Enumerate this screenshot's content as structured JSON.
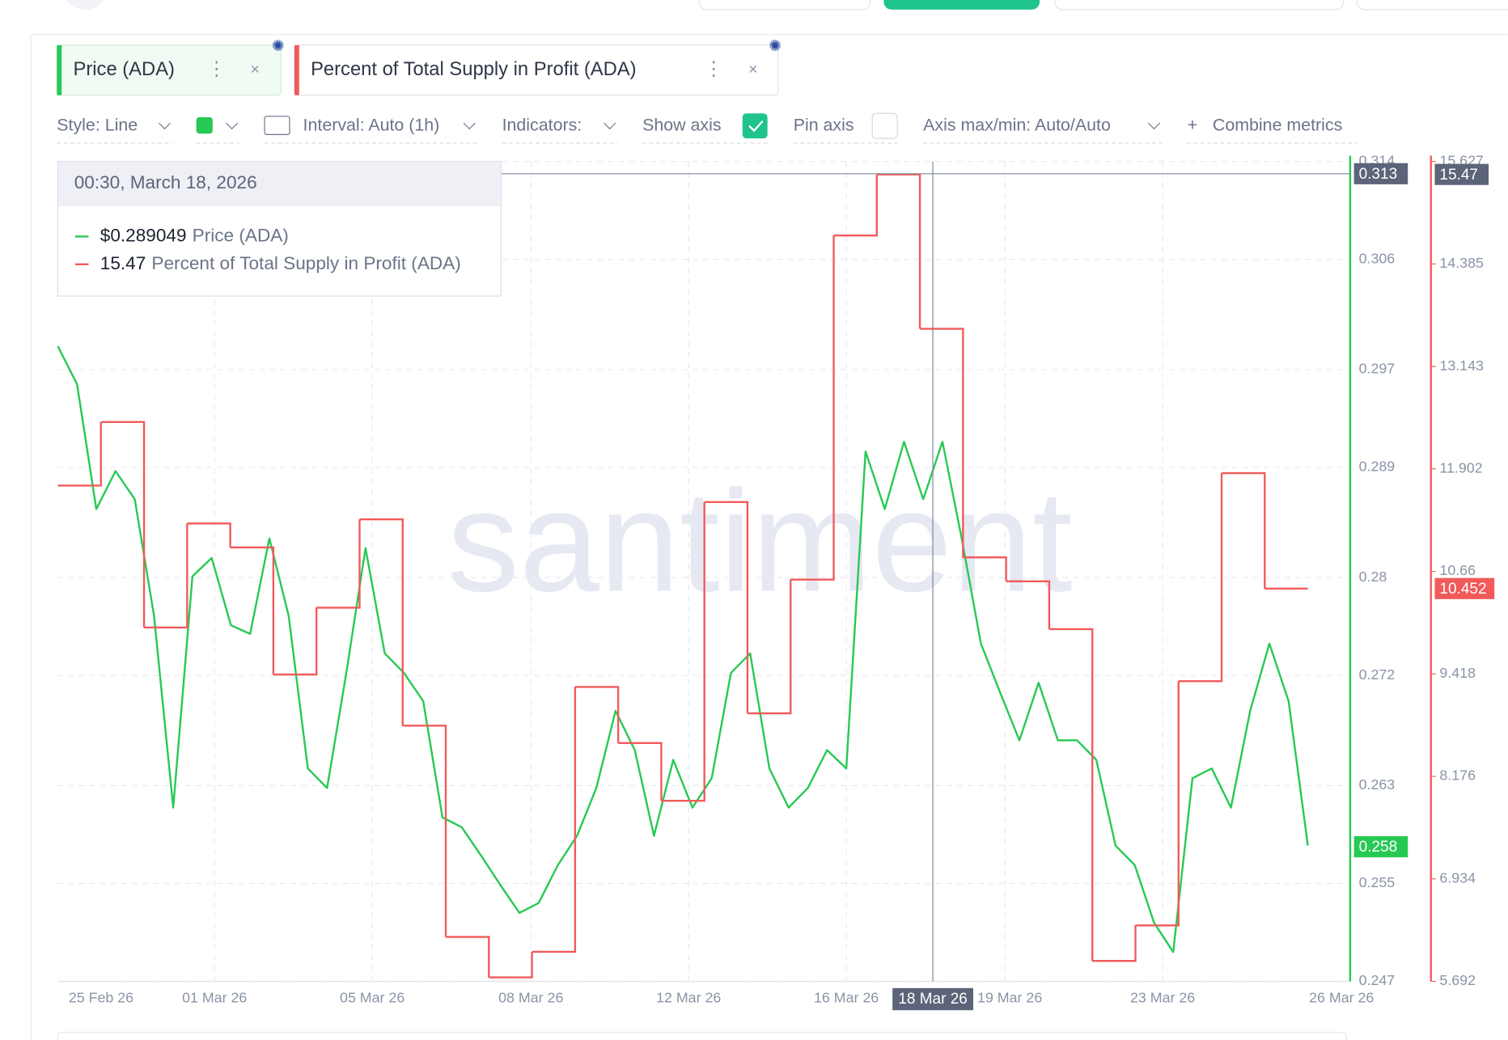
{
  "ui": {
    "tabs": [
      "Price (ADA)",
      "Percent of Total Supply in Profit (ADA)"
    ],
    "toolbar": {
      "style": "Style: Line",
      "interval": "Interval: Auto (1h)",
      "indicators": "Indicators:",
      "show_axis": "Show axis",
      "pin_axis": "Pin axis",
      "axis_minmax": "Axis max/min: Auto/Auto",
      "combine": "Combine metrics"
    },
    "watermark": "santiment",
    "tooltip": {
      "date": "00:30, March 18, 2026",
      "price": "$0.289049"
    }
  },
  "chart_data": {
    "type": "line",
    "xtick_labels": [
      "25 Feb 26",
      "01 Mar 26",
      "05 Mar 26",
      "08 Mar 26",
      "12 Mar 26",
      "16 Mar 26",
      "19 Mar 26",
      "23 Mar 26",
      "26 Mar 26"
    ],
    "series": [
      {
        "name": "Price (ADA)",
        "color": "#26c953",
        "axis": "y",
        "values": [
          0.2989,
          0.2958,
          0.2856,
          0.2887,
          0.2864,
          0.2769,
          0.2612,
          0.2801,
          0.2816,
          0.2761,
          0.2754,
          0.2832,
          0.2769,
          0.2644,
          0.2628,
          0.2722,
          0.2824,
          0.2738,
          0.2722,
          0.2699,
          0.2604,
          0.2596,
          0.2573,
          0.2549,
          0.2526,
          0.2534,
          0.2565,
          0.2589,
          0.2628,
          0.2691,
          0.2659,
          0.2589,
          0.2651,
          0.2612,
          0.2636,
          0.2722,
          0.2738,
          0.2644,
          0.2612,
          0.2628,
          0.2659,
          0.2644,
          0.2903,
          0.2856,
          0.2911,
          0.2864,
          0.2911,
          0.2832,
          0.2746,
          0.2706,
          0.2667,
          0.2714,
          0.2667,
          0.2667,
          0.2651,
          0.2581,
          0.2565,
          0.2518,
          0.2494,
          0.2636,
          0.2644,
          0.2612,
          0.2691,
          0.2746,
          0.2699,
          0.2581
        ]
      },
      {
        "name": "Percent of Total Supply in Profit (ADA)",
        "color": "#f25a5a",
        "axis": "y2",
        "values": [
          11.7,
          12.47,
          9.98,
          11.24,
          10.95,
          9.41,
          10.22,
          11.29,
          8.79,
          6.23,
          5.74,
          6.05,
          9.26,
          8.58,
          7.88,
          11.5,
          8.94,
          10.56,
          14.73,
          15.47,
          13.6,
          10.83,
          10.54,
          9.96,
          5.94,
          6.37,
          9.33,
          11.85,
          10.452
        ]
      }
    ],
    "ylim": [
      0.247,
      0.314
    ],
    "yticks": [
      0.247,
      0.255,
      0.263,
      0.272,
      0.28,
      0.289,
      0.297,
      0.306,
      0.314
    ],
    "y2lim": [
      5.692,
      15.627
    ],
    "y2ticks": [
      5.692,
      6.934,
      8.176,
      9.418,
      10.66,
      11.902,
      13.143,
      14.385,
      15.627
    ],
    "grid": true,
    "badges": {
      "crosshair_x": "18 Mar 26",
      "crosshair_y": 0.313,
      "crosshair_y2": 15.47,
      "last_y": 0.258,
      "last_y2": 10.452
    }
  }
}
